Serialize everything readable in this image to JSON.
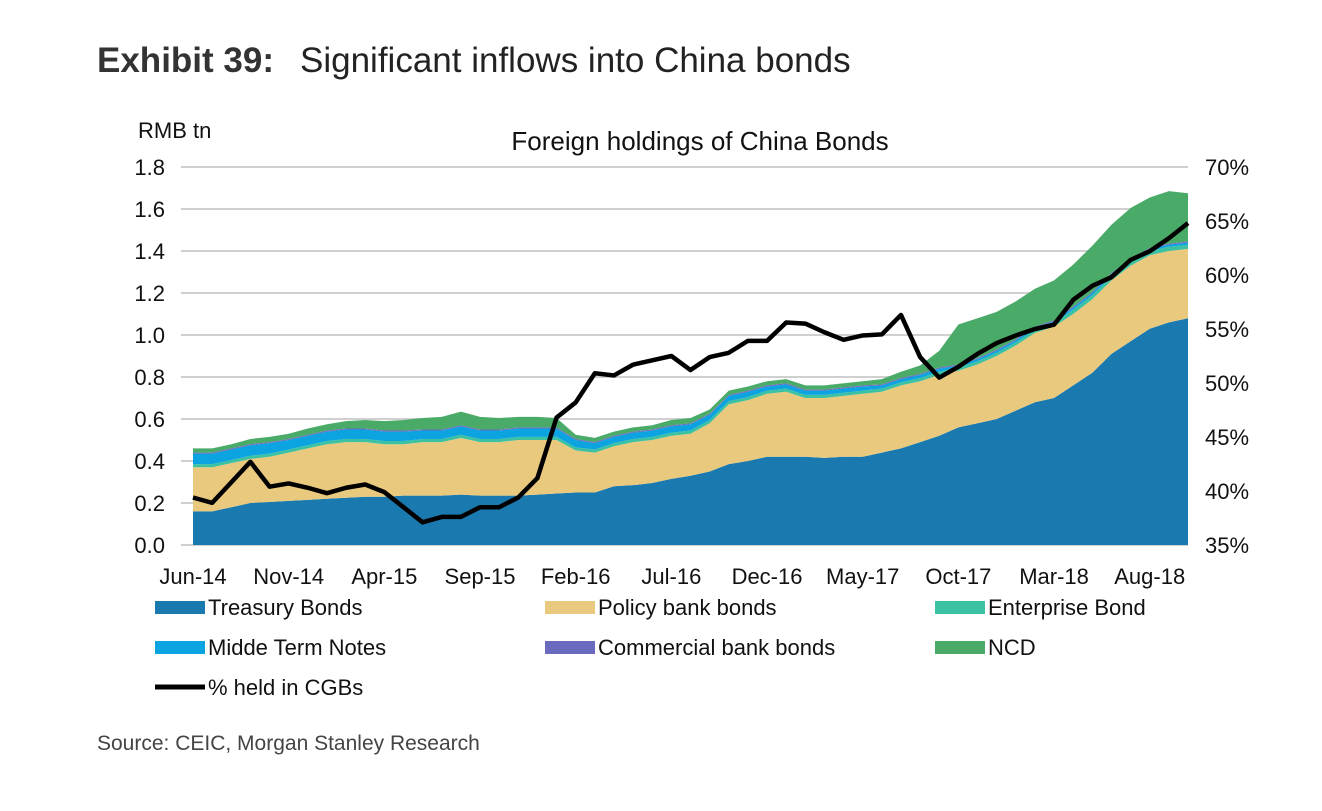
{
  "exhibit_label": "Exhibit 39:",
  "exhibit_title": "Significant inflows into China bonds",
  "source": "Source: CEIC, Morgan Stanley Research",
  "chart_data": {
    "type": "area",
    "title": "Foreign holdings of China Bonds",
    "ylabel": "RMB tn",
    "ylim": [
      0,
      1.8
    ],
    "y2lim": [
      35,
      70
    ],
    "yticks": [
      "0.0",
      "0.2",
      "0.4",
      "0.6",
      "0.8",
      "1.0",
      "1.2",
      "1.4",
      "1.6",
      "1.8"
    ],
    "y2ticks": [
      "35%",
      "40%",
      "45%",
      "50%",
      "55%",
      "60%",
      "65%",
      "70%"
    ],
    "xtick_labels": [
      "Jun-14",
      "Nov-14",
      "Apr-15",
      "Sep-15",
      "Feb-16",
      "Jul-16",
      "Dec-16",
      "May-17",
      "Oct-17",
      "Mar-18",
      "Aug-18"
    ],
    "grid": true,
    "legend_position": "bottom",
    "x": [
      "Jun-14",
      "Jul-14",
      "Aug-14",
      "Sep-14",
      "Oct-14",
      "Nov-14",
      "Dec-14",
      "Jan-15",
      "Feb-15",
      "Mar-15",
      "Apr-15",
      "May-15",
      "Jun-15",
      "Jul-15",
      "Aug-15",
      "Sep-15",
      "Oct-15",
      "Nov-15",
      "Dec-15",
      "Jan-16",
      "Feb-16",
      "Mar-16",
      "Apr-16",
      "May-16",
      "Jun-16",
      "Jul-16",
      "Aug-16",
      "Sep-16",
      "Oct-16",
      "Nov-16",
      "Dec-16",
      "Jan-17",
      "Feb-17",
      "Mar-17",
      "Apr-17",
      "May-17",
      "Jun-17",
      "Jul-17",
      "Aug-17",
      "Sep-17",
      "Oct-17",
      "Nov-17",
      "Dec-17",
      "Jan-18",
      "Feb-18",
      "Mar-18",
      "Apr-18",
      "May-18",
      "Jun-18",
      "Jul-18",
      "Aug-18",
      "Sep-18",
      "Oct-18"
    ],
    "series": [
      {
        "name": "Treasury Bonds",
        "type": "stacked-area",
        "color": "#1a7ab0",
        "values": [
          0.16,
          0.16,
          0.18,
          0.2,
          0.205,
          0.21,
          0.215,
          0.22,
          0.225,
          0.23,
          0.23,
          0.235,
          0.235,
          0.235,
          0.24,
          0.235,
          0.235,
          0.235,
          0.24,
          0.245,
          0.25,
          0.25,
          0.28,
          0.285,
          0.295,
          0.315,
          0.33,
          0.35,
          0.385,
          0.4,
          0.42,
          0.42,
          0.42,
          0.415,
          0.42,
          0.42,
          0.44,
          0.46,
          0.49,
          0.52,
          0.56,
          0.58,
          0.6,
          0.64,
          0.68,
          0.7,
          0.76,
          0.82,
          0.91,
          0.97,
          1.03,
          1.06,
          1.08
        ]
      },
      {
        "name": "Policy bank bonds",
        "type": "stacked-area",
        "color": "#e8c97e",
        "values": [
          0.21,
          0.21,
          0.21,
          0.21,
          0.215,
          0.23,
          0.245,
          0.26,
          0.265,
          0.26,
          0.25,
          0.245,
          0.255,
          0.255,
          0.27,
          0.255,
          0.255,
          0.265,
          0.26,
          0.255,
          0.2,
          0.19,
          0.19,
          0.205,
          0.205,
          0.205,
          0.2,
          0.23,
          0.285,
          0.29,
          0.3,
          0.31,
          0.28,
          0.285,
          0.29,
          0.3,
          0.29,
          0.3,
          0.29,
          0.29,
          0.27,
          0.28,
          0.3,
          0.31,
          0.33,
          0.34,
          0.34,
          0.35,
          0.35,
          0.36,
          0.35,
          0.34,
          0.33
        ]
      },
      {
        "name": "Enterprise Bond",
        "type": "stacked-area",
        "color": "#3cc1a3",
        "values": [
          0.015,
          0.015,
          0.015,
          0.015,
          0.015,
          0.015,
          0.015,
          0.015,
          0.015,
          0.015,
          0.015,
          0.015,
          0.015,
          0.015,
          0.015,
          0.015,
          0.015,
          0.015,
          0.015,
          0.015,
          0.015,
          0.015,
          0.015,
          0.015,
          0.015,
          0.015,
          0.015,
          0.015,
          0.015,
          0.015,
          0.015,
          0.015,
          0.015,
          0.015,
          0.015,
          0.015,
          0.015,
          0.015,
          0.015,
          0.015,
          0.015,
          0.015,
          0.015,
          0.015,
          0.015,
          0.015,
          0.02,
          0.02,
          0.02,
          0.02,
          0.02,
          0.02,
          0.02
        ]
      },
      {
        "name": "Midde Term Notes",
        "type": "stacked-area",
        "color": "#0ba3e0",
        "values": [
          0.05,
          0.05,
          0.05,
          0.05,
          0.05,
          0.045,
          0.045,
          0.045,
          0.045,
          0.045,
          0.045,
          0.045,
          0.04,
          0.04,
          0.04,
          0.04,
          0.04,
          0.04,
          0.04,
          0.04,
          0.035,
          0.03,
          0.03,
          0.03,
          0.03,
          0.03,
          0.03,
          0.025,
          0.025,
          0.025,
          0.02,
          0.02,
          0.02,
          0.02,
          0.02,
          0.02,
          0.015,
          0.015,
          0.015,
          0.015,
          0.01,
          0.01,
          0.01,
          0.01,
          0.01,
          0.01,
          0.01,
          0.01,
          0.01,
          0.01,
          0.01,
          0.01,
          0.01
        ]
      },
      {
        "name": "Commercial bank bonds",
        "type": "stacked-area",
        "color": "#6a6abf",
        "values": [
          0.005,
          0.005,
          0.005,
          0.005,
          0.005,
          0.005,
          0.005,
          0.005,
          0.005,
          0.005,
          0.005,
          0.005,
          0.005,
          0.005,
          0.005,
          0.005,
          0.005,
          0.005,
          0.005,
          0.005,
          0.005,
          0.005,
          0.005,
          0.005,
          0.005,
          0.005,
          0.005,
          0.005,
          0.005,
          0.005,
          0.005,
          0.005,
          0.005,
          0.005,
          0.005,
          0.005,
          0.005,
          0.005,
          0.005,
          0.005,
          0.005,
          0.005,
          0.005,
          0.005,
          0.005,
          0.005,
          0.005,
          0.005,
          0.005,
          0.005,
          0.005,
          0.005,
          0.005
        ]
      },
      {
        "name": "NCD",
        "type": "stacked-area",
        "color": "#4aab69",
        "values": [
          0.02,
          0.02,
          0.02,
          0.025,
          0.025,
          0.025,
          0.03,
          0.03,
          0.035,
          0.04,
          0.045,
          0.05,
          0.055,
          0.06,
          0.065,
          0.06,
          0.055,
          0.05,
          0.05,
          0.045,
          0.02,
          0.02,
          0.02,
          0.02,
          0.02,
          0.025,
          0.025,
          0.02,
          0.02,
          0.02,
          0.02,
          0.02,
          0.02,
          0.02,
          0.02,
          0.02,
          0.025,
          0.03,
          0.04,
          0.08,
          0.19,
          0.19,
          0.18,
          0.18,
          0.18,
          0.19,
          0.2,
          0.22,
          0.23,
          0.24,
          0.24,
          0.25,
          0.23
        ]
      },
      {
        "name": "% held in CGBs",
        "type": "line",
        "axis": "right",
        "color": "#000000",
        "values": [
          39.4,
          38.9,
          40.8,
          42.7,
          40.4,
          40.7,
          40.3,
          39.8,
          40.3,
          40.6,
          39.9,
          38.5,
          37.1,
          37.6,
          37.6,
          38.5,
          38.5,
          39.4,
          41.2,
          46.8,
          48.2,
          50.9,
          50.7,
          51.7,
          52.1,
          52.5,
          51.2,
          52.4,
          52.8,
          53.9,
          53.9,
          55.6,
          55.5,
          54.7,
          54.0,
          54.4,
          54.5,
          56.3,
          52.4,
          50.5,
          51.5,
          52.7,
          53.7,
          54.4,
          55.0,
          55.4,
          57.7,
          59.0,
          59.8,
          61.4,
          62.2,
          63.4,
          64.8
        ]
      }
    ]
  }
}
